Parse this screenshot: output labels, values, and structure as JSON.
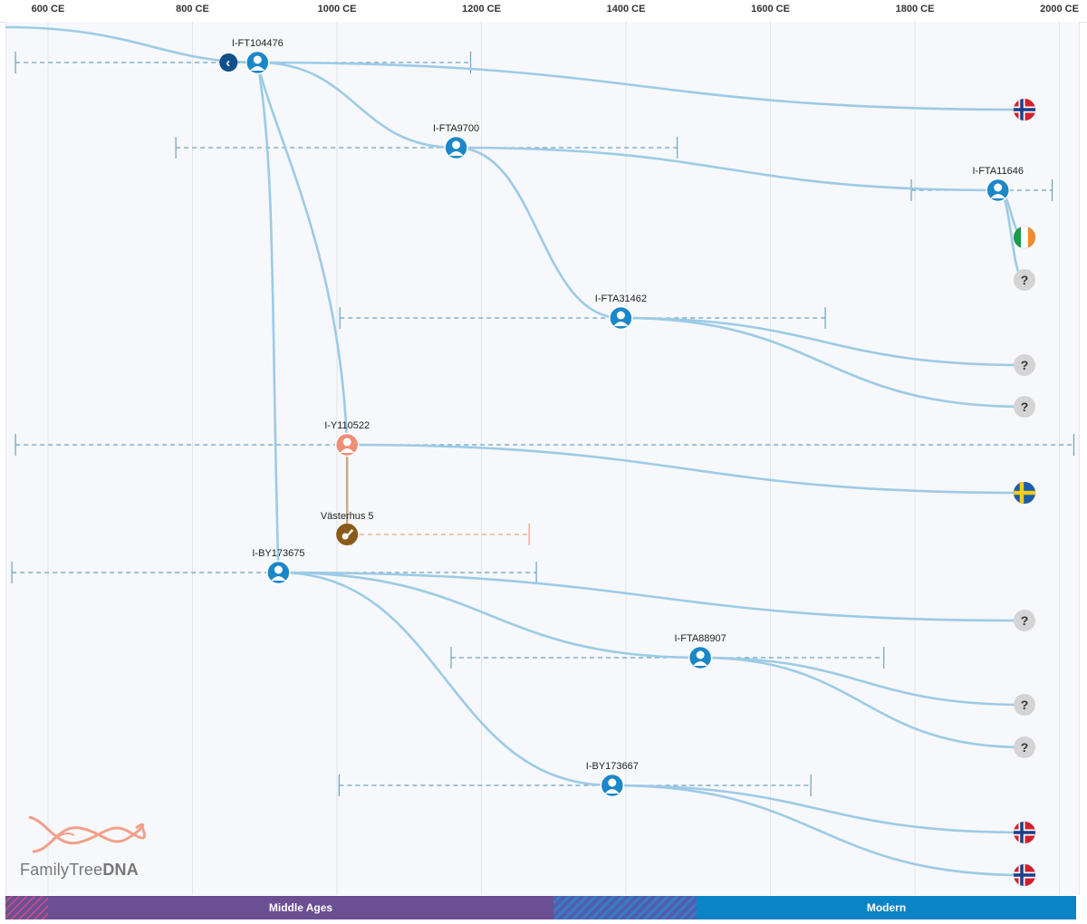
{
  "axis": {
    "ticks": [
      {
        "year": 600,
        "label": "600 CE"
      },
      {
        "year": 800,
        "label": "800 CE"
      },
      {
        "year": 1000,
        "label": "1000 CE"
      },
      {
        "year": 1200,
        "label": "1200 CE"
      },
      {
        "year": 1400,
        "label": "1400 CE"
      },
      {
        "year": 1600,
        "label": "1600 CE"
      },
      {
        "year": 1800,
        "label": "1800 CE"
      },
      {
        "year": 2000,
        "label": "2000 CE"
      }
    ]
  },
  "nodes": [
    {
      "id": "n1",
      "label": "I-FT104476",
      "year": 890,
      "type": "haplogroup",
      "range": [
        555,
        1185
      ]
    },
    {
      "id": "n2",
      "label": "I-FTA9700",
      "year": 1165,
      "type": "haplogroup",
      "range": [
        777,
        1471
      ]
    },
    {
      "id": "n3",
      "label": "I-FTA11646",
      "year": 1915,
      "type": "haplogroup",
      "range": [
        1795,
        1990
      ]
    },
    {
      "id": "n4",
      "label": "I-FTA31462",
      "year": 1393,
      "type": "haplogroup",
      "range": [
        1004,
        1676
      ]
    },
    {
      "id": "n5",
      "label": "I-Y110522",
      "year": 1014,
      "type": "haplogroup-female",
      "range": [
        555,
        2020
      ]
    },
    {
      "id": "n6",
      "label": "Västerhus 5",
      "year": 1014,
      "type": "ancient",
      "range": [
        1020,
        1266
      ]
    },
    {
      "id": "n7",
      "label": "I-BY173675",
      "year": 919,
      "type": "haplogroup",
      "range": [
        550,
        1276
      ]
    },
    {
      "id": "n8",
      "label": "I-FTA88907",
      "year": 1503,
      "type": "haplogroup",
      "range": [
        1158,
        1757
      ]
    },
    {
      "id": "n9",
      "label": "I-BY173667",
      "year": 1381,
      "type": "haplogroup",
      "range": [
        1003,
        1656
      ]
    }
  ],
  "leaves": [
    {
      "id": "l1",
      "kind": "flag",
      "country": "Norway",
      "row": 1
    },
    {
      "id": "l2",
      "kind": "flag",
      "country": "Ireland",
      "row": 2
    },
    {
      "id": "l3",
      "kind": "unknown",
      "symbol": "?",
      "row": 3
    },
    {
      "id": "l4",
      "kind": "unknown",
      "symbol": "?",
      "row": 4
    },
    {
      "id": "l5",
      "kind": "unknown",
      "symbol": "?",
      "row": 5
    },
    {
      "id": "l6",
      "kind": "flag",
      "country": "Sweden",
      "row": 6
    },
    {
      "id": "l7",
      "kind": "unknown",
      "symbol": "?",
      "row": 7
    },
    {
      "id": "l8",
      "kind": "unknown",
      "symbol": "?",
      "row": 8
    },
    {
      "id": "l9",
      "kind": "unknown",
      "symbol": "?",
      "row": 9
    },
    {
      "id": "l10",
      "kind": "flag",
      "country": "Norway",
      "row": 10
    },
    {
      "id": "l11",
      "kind": "flag",
      "country": "Norway",
      "row": 11
    }
  ],
  "eras": [
    {
      "name": "",
      "color": "#6a4f93",
      "hatched": true
    },
    {
      "name": "Middle Ages",
      "color": "#6a4f93",
      "hatched": false
    },
    {
      "name": "",
      "color": "#3b63b0",
      "hatched": true
    },
    {
      "name": "Modern",
      "color": "#0a84c6",
      "hatched": false
    }
  ],
  "logo": {
    "text_light": "FamilyTree",
    "text_bold": "DNA"
  },
  "colors": {
    "branch": "#9ccbe6",
    "range_line": "#6aa2c4",
    "node_blue": "#1b87c9",
    "node_female": "#ee8e77",
    "ancient": "#8a5a1a",
    "ancient_range": "#e9a481",
    "ancient_link": "#c9a98a",
    "unknown_bg": "#d4d4d4",
    "back_button": "#0f4f8c"
  },
  "controls": {
    "back_symbol": "‹"
  }
}
